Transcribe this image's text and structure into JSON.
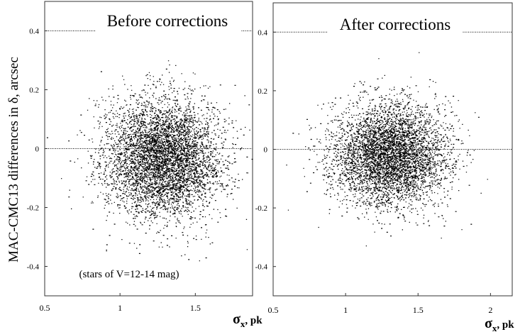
{
  "ylabel": "MAC-CMC13 differences in δ, arcsec",
  "colors": {
    "points": "#000000",
    "frame": "#333333",
    "reference": "#000000",
    "background": "#ffffff"
  },
  "chart_data": [
    {
      "type": "scatter",
      "title": "Before corrections",
      "annotation": "(stars of V=12-14 mag)",
      "xlabel_main": "σ",
      "xlabel_sub": "x",
      "xlabel_unit": ", pk",
      "xlim": [
        0.5,
        1.88
      ],
      "ylim": [
        -0.5,
        0.5
      ],
      "xticks": [
        "0.5",
        "1",
        "1.5"
      ],
      "xtick_values": [
        0.5,
        1.0,
        1.5
      ],
      "yticks": [
        "0.4",
        "0.2",
        "0",
        "-0.2",
        "-0.4"
      ],
      "ytick_values": [
        0.4,
        0.2,
        0.0,
        -0.2,
        -0.4
      ],
      "reference_lines": [
        0.4,
        0.0
      ],
      "grid": false,
      "point_cloud": {
        "n_points": 5200,
        "x_center": 1.28,
        "x_sd": 0.19,
        "y_center": -0.03,
        "y_sd": 0.1
      }
    },
    {
      "type": "scatter",
      "title": "After corrections",
      "xlabel_main": "σ",
      "xlabel_sub": "x",
      "xlabel_unit": ", pk",
      "xlim": [
        0.5,
        2.15
      ],
      "ylim": [
        -0.5,
        0.5
      ],
      "xticks": [
        "0.5",
        "1",
        "1.5",
        "2"
      ],
      "xtick_values": [
        0.5,
        1.0,
        1.5,
        2.0
      ],
      "yticks": [
        "0.4",
        "0.2",
        "0",
        "-0.2",
        "-0.4"
      ],
      "ytick_values": [
        0.4,
        0.2,
        0.0,
        -0.2,
        -0.4
      ],
      "reference_lines": [
        0.4,
        0.0
      ],
      "grid": false,
      "point_cloud": {
        "n_points": 4800,
        "x_center": 1.3,
        "x_sd": 0.2,
        "y_center": -0.02,
        "y_sd": 0.085
      }
    }
  ]
}
